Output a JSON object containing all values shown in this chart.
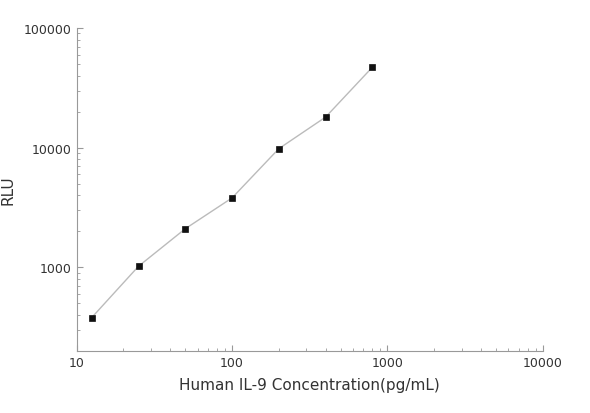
{
  "x": [
    12.5,
    25,
    50,
    100,
    200,
    400,
    800
  ],
  "y": [
    380,
    1020,
    2100,
    3800,
    9800,
    18000,
    47000
  ],
  "xlabel": "Human IL-9 Concentration(pg/mL)",
  "ylabel": "RLU",
  "xlim": [
    10,
    10000
  ],
  "ylim": [
    200,
    100000
  ],
  "line_color": "#bbbbbb",
  "marker_color": "#111111",
  "marker": "s",
  "marker_size": 5,
  "line_width": 1.0,
  "background_color": "#ffffff",
  "xticks": [
    10,
    100,
    1000,
    10000
  ],
  "yticks": [
    1000,
    10000,
    100000
  ],
  "xlabel_fontsize": 11,
  "ylabel_fontsize": 11,
  "tick_fontsize": 9
}
